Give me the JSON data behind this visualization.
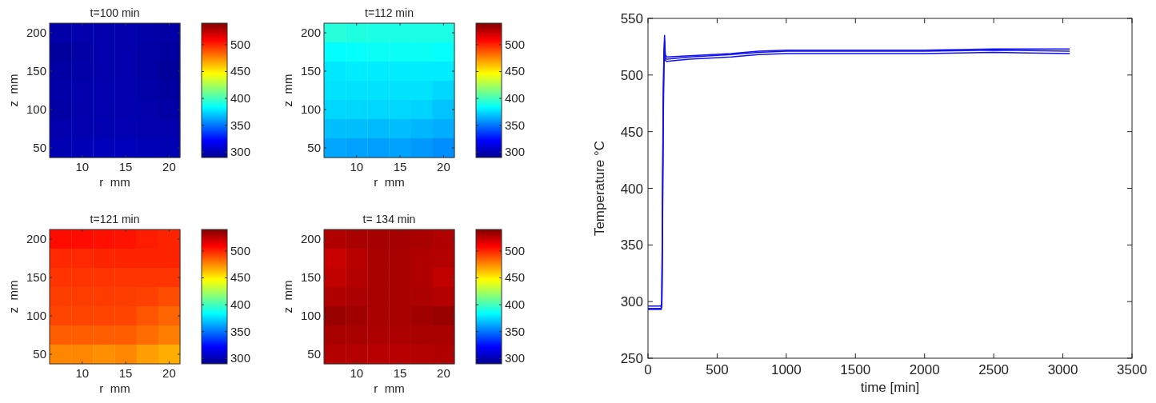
{
  "chart_data": [
    {
      "type": "heatmap",
      "title": "t=100 min",
      "xlabel": "r  mm",
      "ylabel": "z  mm",
      "categories": [
        null,
        "10",
        null,
        "15",
        null,
        "20"
      ],
      "y_categories": [
        "200",
        null,
        "150",
        null,
        "100",
        null,
        "50"
      ],
      "clim": [
        290,
        540
      ],
      "cticks": [
        300,
        350,
        400,
        450,
        500
      ],
      "cells": [
        [
          297,
          298,
          298,
          298,
          297,
          296
        ],
        [
          294,
          296,
          298,
          298,
          296,
          295
        ],
        [
          296,
          297,
          298,
          298,
          296,
          293
        ],
        [
          297,
          298,
          299,
          299,
          297,
          295
        ],
        [
          296,
          298,
          299,
          299,
          298,
          296
        ],
        [
          298,
          299,
          300,
          300,
          299,
          298
        ],
        [
          300,
          301,
          302,
          302,
          301,
          300
        ]
      ]
    },
    {
      "type": "heatmap",
      "title": "t=112 min",
      "xlabel": "r  mm",
      "ylabel": "z  mm",
      "categories": [
        null,
        "10",
        null,
        "15",
        null,
        "20"
      ],
      "y_categories": [
        "200",
        null,
        "150",
        null,
        "100",
        null,
        "50"
      ],
      "clim": [
        290,
        540
      ],
      "cticks": [
        300,
        350,
        400,
        450,
        500
      ],
      "cells": [
        [
          393,
          391,
          390,
          390,
          390,
          390
        ],
        [
          384,
          385,
          386,
          386,
          386,
          385
        ],
        [
          378,
          379,
          379,
          379,
          379,
          379
        ],
        [
          377,
          377,
          377,
          377,
          377,
          374
        ],
        [
          374,
          374,
          374,
          374,
          373,
          369
        ],
        [
          368,
          368,
          367,
          368,
          366,
          364
        ],
        [
          362,
          361,
          360,
          361,
          359,
          356
        ]
      ]
    },
    {
      "type": "heatmap",
      "title": "t=121 min",
      "xlabel": "r  mm",
      "ylabel": "z  mm",
      "categories": [
        null,
        "10",
        null,
        "15",
        null,
        "20"
      ],
      "y_categories": [
        "200",
        null,
        "150",
        null,
        "100",
        null,
        "50"
      ],
      "clim": [
        290,
        540
      ],
      "cticks": [
        300,
        350,
        400,
        450,
        500
      ],
      "cells": [
        [
          506,
          506,
          505,
          504,
          502,
          500
        ],
        [
          499,
          499,
          500,
          500,
          500,
          500
        ],
        [
          496,
          496,
          496,
          496,
          496,
          496
        ],
        [
          494,
          494,
          494,
          494,
          493,
          490
        ],
        [
          492,
          492,
          492,
          492,
          488,
          484
        ],
        [
          486,
          486,
          486,
          486,
          482,
          478
        ],
        [
          476,
          476,
          474,
          476,
          470,
          466
        ]
      ]
    },
    {
      "type": "heatmap",
      "title": "t= 134 min",
      "xlabel": "r  mm",
      "ylabel": "z  mm",
      "categories": [
        null,
        "10",
        null,
        "15",
        null,
        "20"
      ],
      "y_categories": [
        "200",
        null,
        "150",
        null,
        "100",
        null,
        "50"
      ],
      "clim": [
        290,
        540
      ],
      "cticks": [
        300,
        350,
        400,
        450,
        500
      ],
      "cells": [
        [
          528,
          530,
          531,
          531,
          530,
          528
        ],
        [
          522,
          526,
          530,
          530,
          528,
          527
        ],
        [
          524,
          527,
          530,
          530,
          528,
          524
        ],
        [
          528,
          529,
          530,
          530,
          529,
          527
        ],
        [
          534,
          532,
          530,
          530,
          532,
          534
        ],
        [
          530,
          530,
          529,
          529,
          530,
          530
        ],
        [
          527,
          527,
          526,
          526,
          527,
          528
        ]
      ]
    },
    {
      "type": "line",
      "xlabel": "time [min]",
      "ylabel": "Temperature °C",
      "xlim": [
        0,
        3500
      ],
      "xticks": [
        0,
        500,
        1000,
        1500,
        2000,
        2500,
        3000,
        3500
      ],
      "ylim": [
        250,
        550
      ],
      "yticks": [
        250,
        300,
        350,
        400,
        450,
        500,
        550
      ],
      "grid": false,
      "series": [
        {
          "color": "#1010f0",
          "x": [
            0,
            60,
            95,
            100,
            105,
            110,
            115,
            120,
            125,
            135,
            300,
            600,
            800,
            1000,
            1500,
            2000,
            2500,
            3050
          ],
          "values": [
            296,
            296,
            296,
            300,
            400,
            480,
            520,
            535,
            518,
            516,
            517,
            519,
            521,
            522,
            522,
            522,
            523,
            523
          ]
        },
        {
          "color": "#1010f0",
          "x": [
            0,
            60,
            95,
            100,
            105,
            110,
            115,
            120,
            125,
            135,
            300,
            600,
            800,
            1000,
            1500,
            2000,
            2500,
            3050
          ],
          "values": [
            294,
            294,
            294,
            298,
            380,
            470,
            515,
            530,
            515,
            514,
            516,
            518,
            520,
            521,
            521,
            521,
            522,
            521
          ]
        },
        {
          "color": "#1010f0",
          "x": [
            0,
            60,
            95,
            100,
            105,
            110,
            115,
            120,
            125,
            135,
            300,
            600,
            800,
            1000,
            1500,
            2000,
            2500,
            3050
          ],
          "values": [
            293,
            293,
            293,
            296,
            360,
            450,
            505,
            525,
            513,
            512,
            514,
            516,
            518,
            519,
            519,
            519,
            520,
            519
          ]
        }
      ]
    }
  ]
}
